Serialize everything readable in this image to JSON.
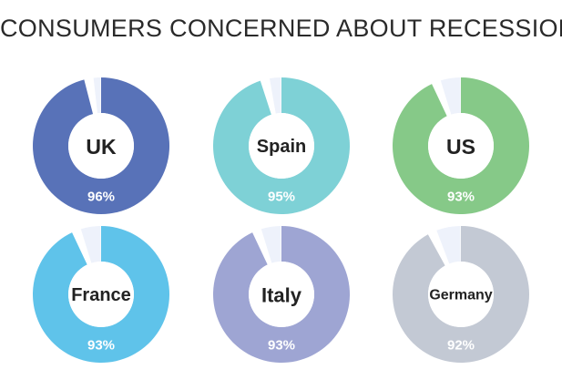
{
  "chart_data": {
    "type": "pie",
    "title": "CONSUMERS CONCERNED ABOUT RECESSION",
    "series": [
      {
        "name": "UK",
        "value": 96,
        "label": "96%",
        "color": "#5872b8"
      },
      {
        "name": "Spain",
        "value": 95,
        "label": "95%",
        "color": "#7ed1d6"
      },
      {
        "name": "US",
        "value": 93,
        "label": "93%",
        "color": "#86c988"
      },
      {
        "name": "France",
        "value": 93,
        "label": "93%",
        "color": "#5fc3ea"
      },
      {
        "name": "Italy",
        "value": 93,
        "label": "93%",
        "color": "#9ea5d3"
      },
      {
        "name": "Germany",
        "value": 92,
        "label": "92%",
        "color": "#c3c9d4"
      }
    ],
    "remainder_color": "#eef2fb"
  }
}
